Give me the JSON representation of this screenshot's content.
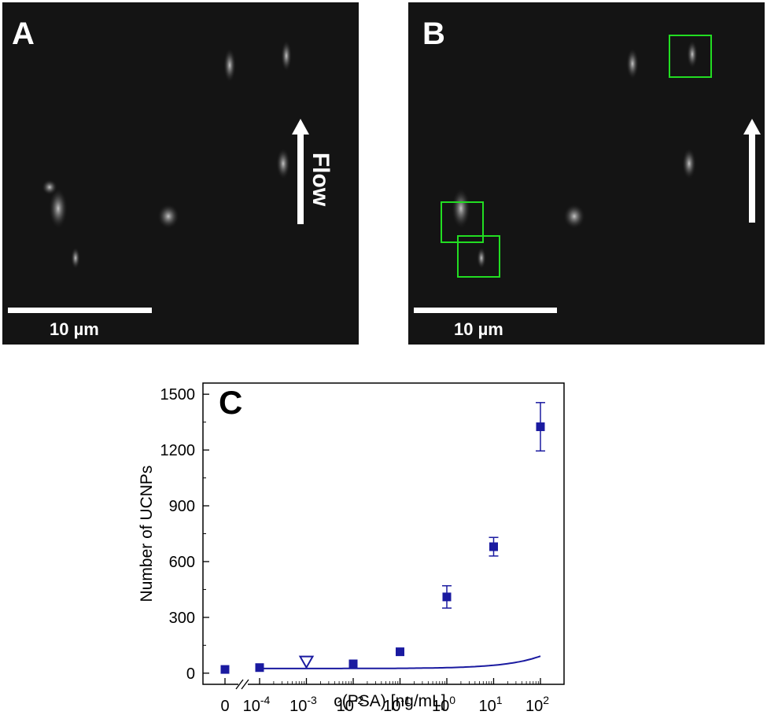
{
  "panel_a": {
    "letter": "A",
    "scale_label": "10 µm",
    "flow_label": "Flow"
  },
  "panel_b": {
    "letter": "B",
    "scale_label": "10 µm"
  },
  "colors": {
    "marker": "#1a1aa0",
    "fit": "#1a1aa0",
    "boxes": "#22dd22",
    "background": "#141414"
  },
  "chart_data": {
    "type": "scatter",
    "letter": "C",
    "title": "",
    "xlabel": "c(PSA) [ng/mL]",
    "ylabel": "Number of UCNPs",
    "xscale": "log with axis break between 0 and 10^-4",
    "ylim": [
      -60,
      1560
    ],
    "yticks": [
      0,
      300,
      600,
      900,
      1200,
      1500
    ],
    "xtick_labels": [
      {
        "base": "0",
        "exp": ""
      },
      {
        "base": "10",
        "exp": "-4"
      },
      {
        "base": "10",
        "exp": "-3"
      },
      {
        "base": "10",
        "exp": "-2"
      },
      {
        "base": "10",
        "exp": "-1"
      },
      {
        "base": "10",
        "exp": "0"
      },
      {
        "base": "10",
        "exp": "1"
      },
      {
        "base": "10",
        "exp": "2"
      }
    ],
    "series": [
      {
        "marker": "square-filled",
        "points": [
          {
            "x": 0,
            "y": 20,
            "err": 0
          },
          {
            "x": 0.0001,
            "y": 30,
            "err": 0
          },
          {
            "x": 0.01,
            "y": 50,
            "err": 0
          },
          {
            "x": 0.1,
            "y": 115,
            "err": 0
          },
          {
            "x": 1,
            "y": 410,
            "err": 60
          },
          {
            "x": 10,
            "y": 680,
            "err": 50
          },
          {
            "x": 100,
            "y": 1325,
            "err": 130
          }
        ]
      },
      {
        "marker": "triangle-down-open",
        "points": [
          {
            "x": 0.001,
            "y": 60,
            "err": 0
          }
        ]
      }
    ],
    "fit_curve": {
      "type": "line",
      "x_from": 0.0001,
      "x_to": 100
    }
  }
}
